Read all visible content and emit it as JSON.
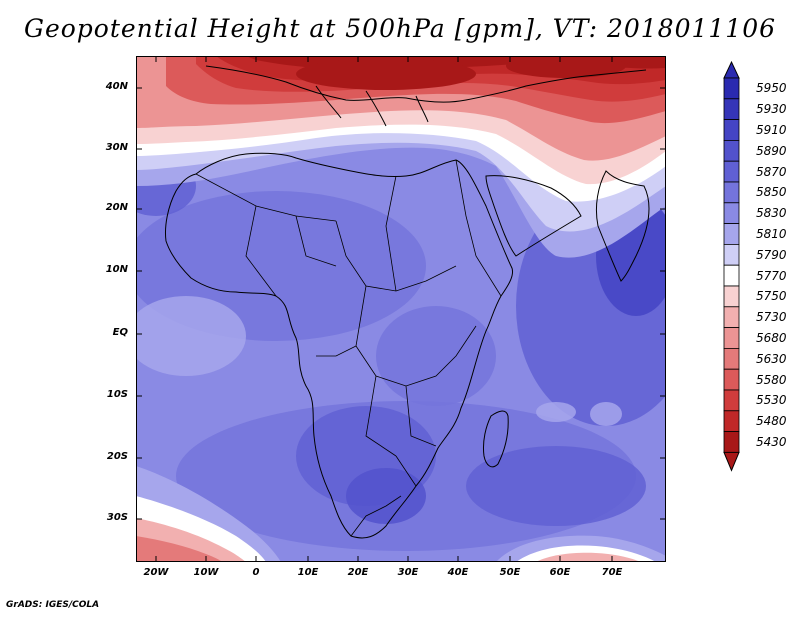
{
  "title": "Geopotential Height at 500hPa [gpm], VT: 2018011106",
  "credit": "GrADS: IGES/COLA",
  "lat_labels": [
    "40N",
    "30N",
    "20N",
    "10N",
    "EQ",
    "10S",
    "20S",
    "30S"
  ],
  "lon_labels": [
    "20W",
    "10W",
    "0",
    "10E",
    "20E",
    "30E",
    "40E",
    "50E",
    "60E",
    "70E"
  ],
  "colorbar": {
    "levels": [
      "5950",
      "5930",
      "5910",
      "5890",
      "5870",
      "5850",
      "5830",
      "5810",
      "5790",
      "5770",
      "5750",
      "5730",
      "5680",
      "5630",
      "5580",
      "5530",
      "5480",
      "5430"
    ],
    "colors": [
      "#2a2ab0",
      "#3535b8",
      "#4444c4",
      "#5252cc",
      "#6060d4",
      "#7474dc",
      "#8a8ae4",
      "#a6a6ec",
      "#cfcff6",
      "#ffffff",
      "#f8d2d2",
      "#f2b0b0",
      "#ec9494",
      "#e47a7a",
      "#dc5a5a",
      "#d03c3c",
      "#c02828",
      "#a81818"
    ]
  },
  "map": {
    "ocean_color": "#8a8ae4",
    "north_colors": [
      "#a81818",
      "#c02828",
      "#d03c3c",
      "#dc5a5a",
      "#ec9494",
      "#f8d2d2",
      "#ffffff"
    ],
    "south_colors": [
      "#e47a7a",
      "#f2b0b0",
      "#ffffff",
      "#a6a6ec"
    ]
  }
}
